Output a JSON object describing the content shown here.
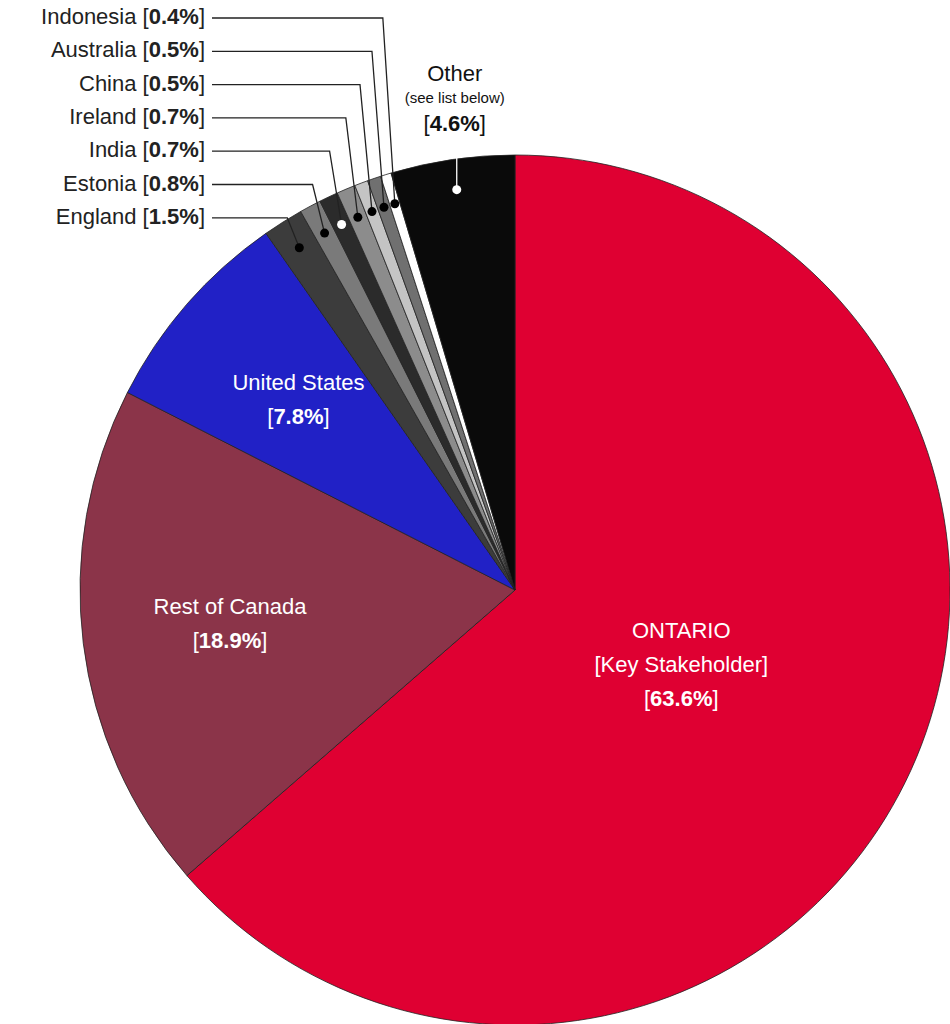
{
  "chart_data": {
    "type": "pie",
    "categories": [
      "ONTARIO",
      "Rest of Canada",
      "United States",
      "England",
      "Estonia",
      "India",
      "Ireland",
      "China",
      "Australia",
      "Indonesia",
      "Other"
    ],
    "values": [
      63.6,
      18.9,
      7.8,
      1.5,
      0.8,
      0.7,
      0.7,
      0.5,
      0.5,
      0.4,
      4.6
    ],
    "value_labels": [
      "[63.6%]",
      "[18.9%]",
      "[7.8%]",
      "[1.5%]",
      "[0.8%]",
      "[0.7%]",
      "[0.7%]",
      "[0.5%]",
      "[0.5%]",
      "[0.4%]",
      "[4.6%]"
    ],
    "colors": [
      "#df0032",
      "#8b3449",
      "#2121c6",
      "#3c3c3c",
      "#7a7a7a",
      "#2b2b2b",
      "#8c8c8c",
      "#c4c4c4",
      "#707070",
      "#ffffff",
      "#0a0a0a"
    ],
    "annotations": [
      {
        "category": "ONTARIO",
        "text": "[Key Stakeholder]"
      },
      {
        "category": "Other",
        "text": "(see list below)"
      }
    ],
    "data_labels": true
  }
}
